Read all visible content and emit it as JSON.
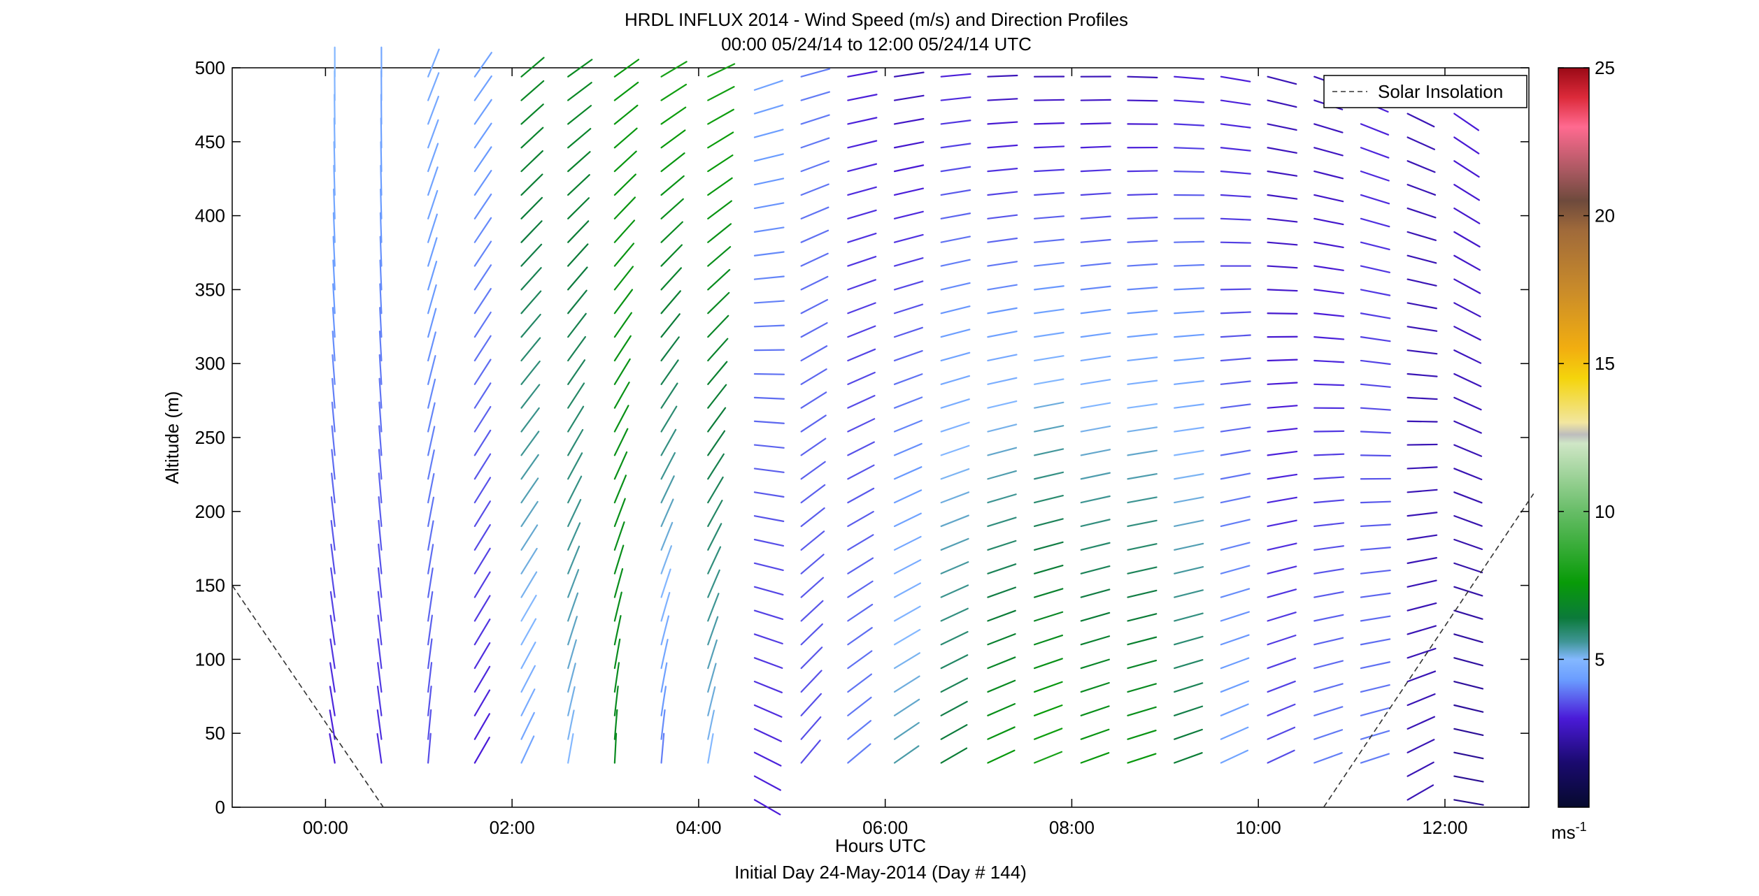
{
  "chart_data": {
    "type": "wind-barb-profile",
    "title": "HRDL INFLUX 2014 - Wind Speed (m/s) and Direction Profiles",
    "subtitle": "00:00 05/24/14 to 12:00 05/24/14  UTC",
    "xlabel": "Hours UTC",
    "xlabel2": "Initial Day 24-May-2014 (Day # 144)",
    "ylabel": "Altitude (m)",
    "xlim": [
      -1.0,
      12.9
    ],
    "ylim": [
      0,
      500
    ],
    "x_ticks": [
      {
        "value": 0,
        "label": "00:00"
      },
      {
        "value": 2,
        "label": "02:00"
      },
      {
        "value": 4,
        "label": "04:00"
      },
      {
        "value": 6,
        "label": "06:00"
      },
      {
        "value": 8,
        "label": "08:00"
      },
      {
        "value": 10,
        "label": "10:00"
      },
      {
        "value": 12,
        "label": "12:00"
      }
    ],
    "y_ticks": [
      0,
      50,
      100,
      150,
      200,
      250,
      300,
      350,
      400,
      450,
      500
    ],
    "legend": {
      "label": "Solar Insolation",
      "position": "top-right",
      "style": "dashed",
      "color": "#333333"
    },
    "colorbar": {
      "min": 0,
      "max": 25,
      "ticks": [
        5,
        10,
        15,
        20,
        25
      ],
      "unit_label": "ms",
      "unit_exponent": "-1",
      "stops": [
        {
          "v": 0,
          "c": "#060a2e"
        },
        {
          "v": 1.5,
          "c": "#1a0a6e"
        },
        {
          "v": 3,
          "c": "#4a1ad8"
        },
        {
          "v": 4.3,
          "c": "#6a9cff"
        },
        {
          "v": 5,
          "c": "#84b8ff"
        },
        {
          "v": 5.6,
          "c": "#3f9595"
        },
        {
          "v": 6.4,
          "c": "#0b7a3a"
        },
        {
          "v": 7.6,
          "c": "#089b08"
        },
        {
          "v": 10,
          "c": "#67bd67"
        },
        {
          "v": 12.3,
          "c": "#cfe6c6"
        },
        {
          "v": 12.6,
          "c": "#bdbdbd"
        },
        {
          "v": 13,
          "c": "#f2e6a0"
        },
        {
          "v": 14.5,
          "c": "#f4d40c"
        },
        {
          "v": 15.5,
          "c": "#f2ae10"
        },
        {
          "v": 17.5,
          "c": "#c98b2a"
        },
        {
          "v": 19.5,
          "c": "#a06a3a"
        },
        {
          "v": 20.5,
          "c": "#6e4a3c"
        },
        {
          "v": 21.5,
          "c": "#a85860"
        },
        {
          "v": 23,
          "c": "#ff6a90"
        },
        {
          "v": 24,
          "c": "#dc2a3a"
        },
        {
          "v": 25,
          "c": "#9a0a16"
        }
      ]
    },
    "solar_insolation": [
      {
        "segment": "morning",
        "points": [
          [
            -1.0,
            150
          ],
          [
            0.62,
            0
          ]
        ]
      },
      {
        "segment": "evening",
        "points": [
          [
            10.7,
            0
          ],
          [
            12.95,
            212
          ]
        ]
      }
    ],
    "profiles": [
      {
        "time": 0.1,
        "altitudes": [
          30,
          500
        ],
        "speed": [
          3,
          5
        ],
        "dir_deg": [
          350,
          360
        ]
      },
      {
        "time": 0.6,
        "altitudes": [
          30,
          500
        ],
        "speed": [
          3.2,
          4.6
        ],
        "dir_deg": [
          352,
          360
        ]
      },
      {
        "time": 1.1,
        "altitudes": [
          30,
          500
        ],
        "speed": [
          3.5,
          4.7
        ],
        "dir_deg": [
          5,
          22
        ]
      },
      {
        "time": 1.6,
        "altitudes": [
          30,
          500
        ],
        "speed": [
          3,
          4.5
        ],
        "dir_deg": [
          30,
          35
        ]
      },
      {
        "time": 2.1,
        "altitudes": [
          30,
          500
        ],
        "speed": [
          4.5,
          7
        ],
        "dir_deg": [
          25,
          50
        ]
      },
      {
        "time": 2.6,
        "altitudes": [
          30,
          500
        ],
        "speed": [
          5,
          7
        ],
        "dir_deg": [
          10,
          55
        ]
      },
      {
        "time": 3.1,
        "altitudes": [
          30,
          500
        ],
        "speed": [
          7,
          7.5
        ],
        "dir_deg": [
          3,
          55
        ]
      },
      {
        "time": 3.6,
        "altitudes": [
          30,
          500
        ],
        "speed": [
          4,
          8
        ],
        "dir_deg": [
          5,
          60
        ]
      },
      {
        "time": 4.1,
        "altitudes": [
          30,
          500
        ],
        "speed": [
          5,
          8
        ],
        "dir_deg": [
          10,
          65
        ]
      },
      {
        "time": 4.6,
        "altitudes": [
          5,
          500
        ],
        "speed": [
          3,
          4.5
        ],
        "dir_deg": [
          120,
          70
        ]
      },
      {
        "time": 5.1,
        "altitudes": [
          30,
          500
        ],
        "speed": [
          3.5,
          4
        ],
        "dir_deg": [
          40,
          75
        ]
      },
      {
        "time": 5.6,
        "altitudes": [
          30,
          500
        ],
        "speed": [
          4,
          3
        ],
        "dir_deg": [
          50,
          80
        ]
      },
      {
        "time": 6.1,
        "altitudes": [
          30,
          500
        ],
        "speed": [
          5.5,
          2.5
        ],
        "dir_deg": [
          55,
          82
        ]
      },
      {
        "time": 6.6,
        "altitudes": [
          30,
          500
        ],
        "speed": [
          6.5,
          3
        ],
        "dir_deg": [
          60,
          85
        ]
      },
      {
        "time": 7.1,
        "altitudes": [
          30,
          500
        ],
        "speed": [
          7.5,
          2.5
        ],
        "dir_deg": [
          65,
          88
        ]
      },
      {
        "time": 7.6,
        "altitudes": [
          30,
          500
        ],
        "speed": [
          8,
          2.5
        ],
        "dir_deg": [
          68,
          90
        ]
      },
      {
        "time": 8.1,
        "altitudes": [
          30,
          500
        ],
        "speed": [
          7.5,
          2.5
        ],
        "dir_deg": [
          70,
          90
        ]
      },
      {
        "time": 8.6,
        "altitudes": [
          30,
          500
        ],
        "speed": [
          7.5,
          2.5
        ],
        "dir_deg": [
          72,
          92
        ]
      },
      {
        "time": 9.1,
        "altitudes": [
          30,
          500
        ],
        "speed": [
          6.5,
          3
        ],
        "dir_deg": [
          70,
          95
        ]
      },
      {
        "time": 9.6,
        "altitudes": [
          30,
          500
        ],
        "speed": [
          4.5,
          3
        ],
        "dir_deg": [
          65,
          100
        ]
      },
      {
        "time": 10.1,
        "altitudes": [
          30,
          500
        ],
        "speed": [
          3.5,
          2.5
        ],
        "dir_deg": [
          65,
          105
        ]
      },
      {
        "time": 10.6,
        "altitudes": [
          30,
          500
        ],
        "speed": [
          4,
          2.5
        ],
        "dir_deg": [
          70,
          110
        ]
      },
      {
        "time": 11.1,
        "altitudes": [
          30,
          500
        ],
        "speed": [
          4,
          3
        ],
        "dir_deg": [
          72,
          115
        ]
      },
      {
        "time": 11.6,
        "altitudes": [
          5,
          500
        ],
        "speed": [
          2.5,
          2.5
        ],
        "dir_deg": [
          60,
          120
        ]
      },
      {
        "time": 12.1,
        "altitudes": [
          5,
          480
        ],
        "speed": [
          2,
          3
        ],
        "dir_deg": [
          100,
          125
        ]
      }
    ]
  }
}
